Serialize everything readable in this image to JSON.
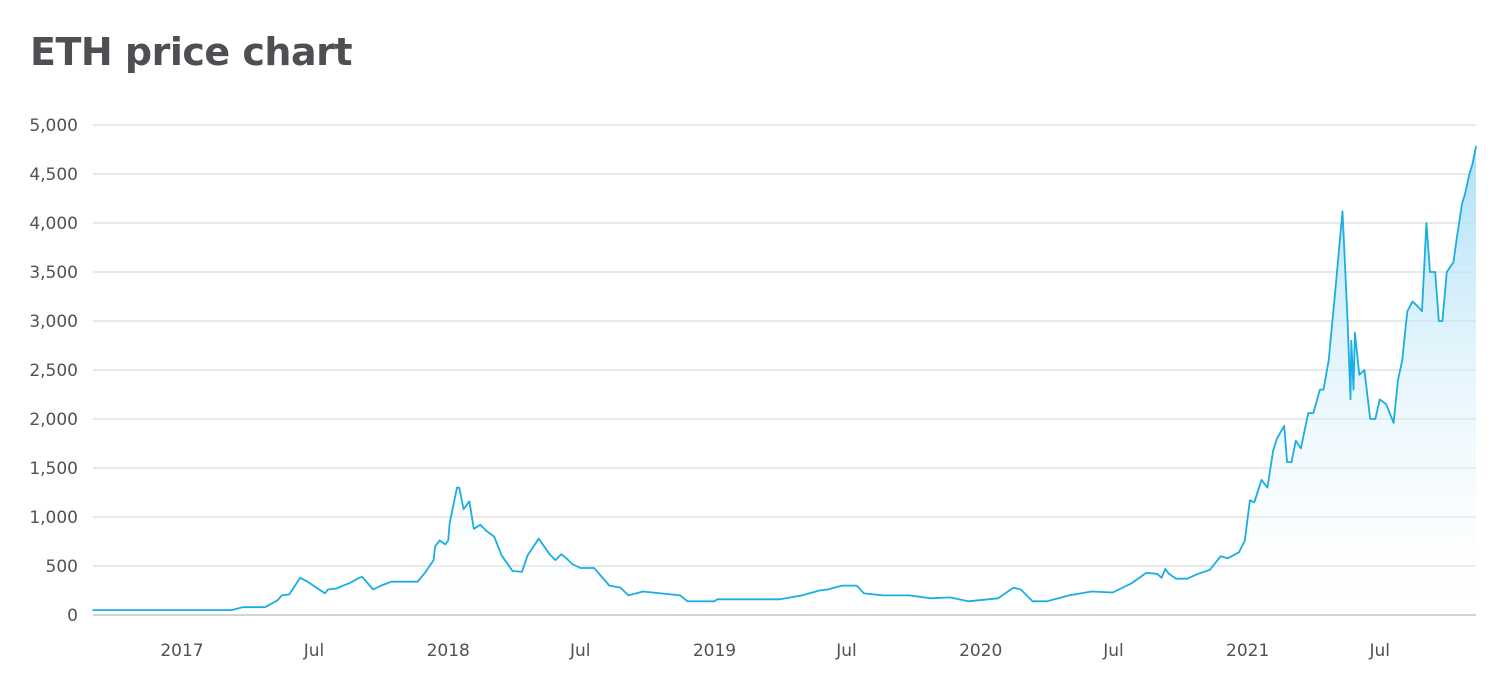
{
  "chart_title": "ETH price chart",
  "colors": {
    "line": "#1aaee3",
    "fill_top": "#a8dff7",
    "grid": "#d9dcdf",
    "axis": "#c3c7cb",
    "text": "#4f5256"
  },
  "chart_data": {
    "type": "area",
    "title": "ETH price chart",
    "xlabel": "",
    "ylabel": "",
    "ylim": [
      0,
      5000
    ],
    "xlim": [
      "2016-09-01",
      "2021-11-10"
    ],
    "grid": true,
    "y_ticks": [
      0,
      500,
      1000,
      1500,
      2000,
      2500,
      3000,
      3500,
      4000,
      4500,
      5000
    ],
    "y_tick_labels": [
      "0",
      "500",
      "1,000",
      "1,500",
      "2,000",
      "2,500",
      "3,000",
      "3,500",
      "4,000",
      "4,500",
      "5,000"
    ],
    "x_ticks": [
      {
        "date": "2017-01-01",
        "label": "2017"
      },
      {
        "date": "2017-07-01",
        "label": "Jul"
      },
      {
        "date": "2018-01-01",
        "label": "2018"
      },
      {
        "date": "2018-07-01",
        "label": "Jul"
      },
      {
        "date": "2019-01-01",
        "label": "2019"
      },
      {
        "date": "2019-07-01",
        "label": "Jul"
      },
      {
        "date": "2020-01-01",
        "label": "2020"
      },
      {
        "date": "2020-07-01",
        "label": "Jul"
      },
      {
        "date": "2021-01-01",
        "label": "2021"
      },
      {
        "date": "2021-07-01",
        "label": "Jul"
      }
    ],
    "series": [
      {
        "points": [
          [
            "2016-09-01",
            50
          ],
          [
            "2016-12-01",
            50
          ],
          [
            "2017-03-01",
            50
          ],
          [
            "2017-03-10",
            50
          ],
          [
            "2017-03-25",
            80
          ],
          [
            "2017-04-15",
            80
          ],
          [
            "2017-04-25",
            80
          ],
          [
            "2017-05-05",
            120
          ],
          [
            "2017-05-12",
            150
          ],
          [
            "2017-05-18",
            200
          ],
          [
            "2017-05-28",
            210
          ],
          [
            "2017-06-12",
            380
          ],
          [
            "2017-06-22",
            340
          ],
          [
            "2017-07-16",
            220
          ],
          [
            "2017-07-20",
            260
          ],
          [
            "2017-08-01",
            270
          ],
          [
            "2017-08-10",
            300
          ],
          [
            "2017-08-20",
            330
          ],
          [
            "2017-09-01",
            380
          ],
          [
            "2017-09-05",
            390
          ],
          [
            "2017-09-20",
            260
          ],
          [
            "2017-10-01",
            300
          ],
          [
            "2017-10-15",
            340
          ],
          [
            "2017-11-20",
            340
          ],
          [
            "2017-12-01",
            440
          ],
          [
            "2017-12-12",
            560
          ],
          [
            "2017-12-14",
            700
          ],
          [
            "2017-12-20",
            760
          ],
          [
            "2017-12-28",
            720
          ],
          [
            "2018-01-01",
            760
          ],
          [
            "2018-01-03",
            940
          ],
          [
            "2018-01-13",
            1300
          ],
          [
            "2018-01-16",
            1300
          ],
          [
            "2018-01-22",
            1080
          ],
          [
            "2018-01-30",
            1160
          ],
          [
            "2018-02-05",
            880
          ],
          [
            "2018-02-14",
            920
          ],
          [
            "2018-02-22",
            860
          ],
          [
            "2018-03-05",
            800
          ],
          [
            "2018-03-15",
            610
          ],
          [
            "2018-03-30",
            450
          ],
          [
            "2018-04-12",
            440
          ],
          [
            "2018-04-20",
            610
          ],
          [
            "2018-05-05",
            780
          ],
          [
            "2018-05-20",
            620
          ],
          [
            "2018-05-28",
            560
          ],
          [
            "2018-06-05",
            620
          ],
          [
            "2018-06-12",
            580
          ],
          [
            "2018-06-20",
            520
          ],
          [
            "2018-07-01",
            480
          ],
          [
            "2018-07-20",
            480
          ],
          [
            "2018-08-10",
            300
          ],
          [
            "2018-08-25",
            280
          ],
          [
            "2018-09-05",
            200
          ],
          [
            "2018-09-25",
            240
          ],
          [
            "2018-11-15",
            200
          ],
          [
            "2018-11-25",
            140
          ],
          [
            "2018-12-15",
            140
          ],
          [
            "2019-01-01",
            140
          ],
          [
            "2019-01-05",
            160
          ],
          [
            "2019-04-01",
            160
          ],
          [
            "2019-05-01",
            200
          ],
          [
            "2019-05-25",
            250
          ],
          [
            "2019-06-05",
            260
          ],
          [
            "2019-06-25",
            300
          ],
          [
            "2019-07-15",
            300
          ],
          [
            "2019-07-25",
            220
          ],
          [
            "2019-08-20",
            200
          ],
          [
            "2019-09-25",
            200
          ],
          [
            "2019-10-25",
            170
          ],
          [
            "2019-11-20",
            180
          ],
          [
            "2019-12-15",
            140
          ],
          [
            "2020-01-25",
            170
          ],
          [
            "2020-02-15",
            280
          ],
          [
            "2020-02-25",
            260
          ],
          [
            "2020-03-12",
            140
          ],
          [
            "2020-04-01",
            140
          ],
          [
            "2020-05-01",
            200
          ],
          [
            "2020-06-01",
            240
          ],
          [
            "2020-06-30",
            230
          ],
          [
            "2020-07-25",
            320
          ],
          [
            "2020-08-15",
            430
          ],
          [
            "2020-08-30",
            420
          ],
          [
            "2020-09-05",
            380
          ],
          [
            "2020-09-10",
            470
          ],
          [
            "2020-09-15",
            420
          ],
          [
            "2020-09-25",
            370
          ],
          [
            "2020-10-10",
            370
          ],
          [
            "2020-10-25",
            420
          ],
          [
            "2020-11-10",
            460
          ],
          [
            "2020-11-25",
            600
          ],
          [
            "2020-12-05",
            580
          ],
          [
            "2020-12-20",
            640
          ],
          [
            "2020-12-28",
            760
          ],
          [
            "2021-01-04",
            1170
          ],
          [
            "2021-01-10",
            1150
          ],
          [
            "2021-01-20",
            1380
          ],
          [
            "2021-01-28",
            1300
          ],
          [
            "2021-02-05",
            1680
          ],
          [
            "2021-02-10",
            1800
          ],
          [
            "2021-02-20",
            1930
          ],
          [
            "2021-02-24",
            1560
          ],
          [
            "2021-03-02",
            1560
          ],
          [
            "2021-03-08",
            1780
          ],
          [
            "2021-03-15",
            1700
          ],
          [
            "2021-03-25",
            2060
          ],
          [
            "2021-04-01",
            2060
          ],
          [
            "2021-04-10",
            2300
          ],
          [
            "2021-04-15",
            2300
          ],
          [
            "2021-04-22",
            2600
          ],
          [
            "2021-05-01",
            3300
          ],
          [
            "2021-05-11",
            4120
          ],
          [
            "2021-05-18",
            3000
          ],
          [
            "2021-05-22",
            2200
          ],
          [
            "2021-05-23",
            2800
          ],
          [
            "2021-05-26",
            2300
          ],
          [
            "2021-05-28",
            2880
          ],
          [
            "2021-06-03",
            2450
          ],
          [
            "2021-06-10",
            2500
          ],
          [
            "2021-06-18",
            2000
          ],
          [
            "2021-06-25",
            2000
          ],
          [
            "2021-07-01",
            2200
          ],
          [
            "2021-07-10",
            2150
          ],
          [
            "2021-07-20",
            1960
          ],
          [
            "2021-07-26",
            2400
          ],
          [
            "2021-08-01",
            2600
          ],
          [
            "2021-08-05",
            2900
          ],
          [
            "2021-08-08",
            3100
          ],
          [
            "2021-08-15",
            3200
          ],
          [
            "2021-08-22",
            3150
          ],
          [
            "2021-08-28",
            3100
          ],
          [
            "2021-09-03",
            4000
          ],
          [
            "2021-09-08",
            3500
          ],
          [
            "2021-09-15",
            3500
          ],
          [
            "2021-09-20",
            3000
          ],
          [
            "2021-09-25",
            3000
          ],
          [
            "2021-10-01",
            3500
          ],
          [
            "2021-10-10",
            3600
          ],
          [
            "2021-10-15",
            3860
          ],
          [
            "2021-10-22",
            4200
          ],
          [
            "2021-10-26",
            4300
          ],
          [
            "2021-11-01",
            4500
          ],
          [
            "2021-11-05",
            4600
          ],
          [
            "2021-11-10",
            4780
          ]
        ]
      }
    ]
  }
}
